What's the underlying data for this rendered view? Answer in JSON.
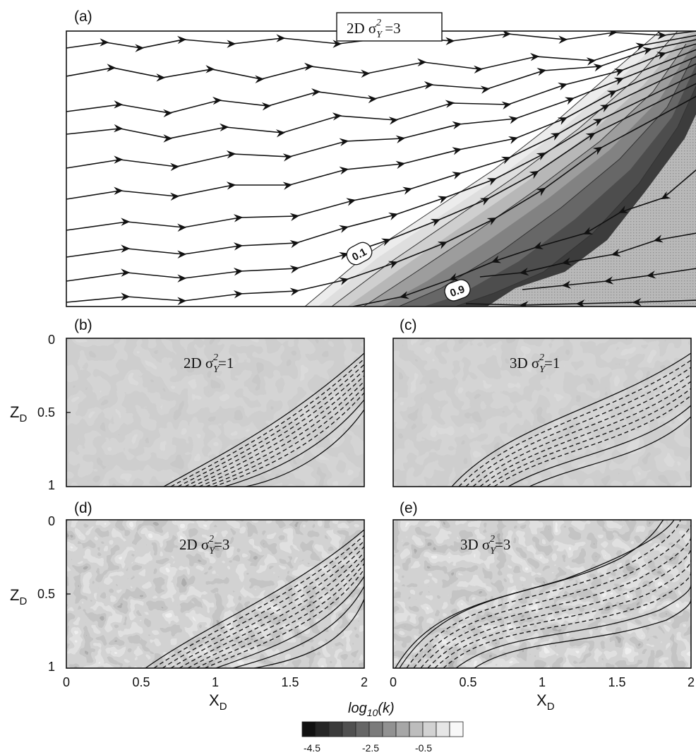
{
  "panels": {
    "a": {
      "label": "(a)",
      "title_main": "2D σ",
      "title_sub": "Y",
      "title_sup": "2",
      "title_eq": " =3",
      "contour_low": "0.1",
      "contour_high": "0.9"
    },
    "b": {
      "label": "(b)",
      "title_main": "2D σ",
      "title_sub": "Y",
      "title_sup": "2",
      "title_eq": "=1"
    },
    "c": {
      "label": "(c)",
      "title_main": "3D σ",
      "title_sub": "Y",
      "title_sup": "2",
      "title_eq": "=1"
    },
    "d": {
      "label": "(d)",
      "title_main": "2D σ",
      "title_sub": "Y",
      "title_sup": "2",
      "title_eq": "=3"
    },
    "e": {
      "label": "(e)",
      "title_main": "3D σ",
      "title_sub": "Y",
      "title_sup": "2",
      "title_eq": "=3"
    }
  },
  "axes": {
    "z_label_main": "Z",
    "z_label_sub": "D",
    "x_label_main": "X",
    "x_label_sub": "D",
    "z_ticks": [
      "0",
      "0.5",
      "1"
    ],
    "x_ticks": [
      "0",
      "0.5",
      "1",
      "1.5",
      "2"
    ]
  },
  "colorbar": {
    "title": "log10(k)",
    "title_main": "log",
    "title_sub": "10",
    "title_rest": "(k)",
    "tick_labels": [
      "-4.5",
      "-2.5",
      "-0.5"
    ],
    "colors": [
      "#111111",
      "#262626",
      "#3b3b3b",
      "#505050",
      "#666666",
      "#7b7b7b",
      "#919191",
      "#a7a7a7",
      "#bdbdbd",
      "#d2d2d2",
      "#e6e6e6",
      "#f8f8f8"
    ]
  },
  "colors": {
    "field_mid": "#a9a9a9",
    "plume_dark": "#4a4a4a",
    "line": "#111111"
  }
}
